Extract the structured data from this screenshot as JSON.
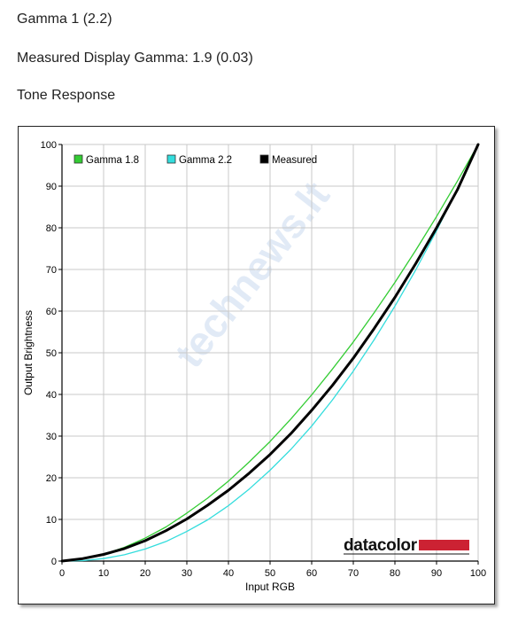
{
  "header": {
    "gamma_setting": "Gamma 1 (2.2)",
    "measured_gamma": "Measured Display Gamma: 1.9 (0.03)",
    "section_title": "Tone Response"
  },
  "watermark": "technews.lt",
  "logo_text": "datacolor",
  "chart_data": {
    "type": "line",
    "title": "",
    "xlabel": "Input RGB",
    "ylabel": "Output Brightness",
    "xlim": [
      0,
      100
    ],
    "ylim": [
      0,
      100
    ],
    "xticks": [
      0,
      10,
      20,
      30,
      40,
      50,
      60,
      70,
      80,
      90,
      100
    ],
    "yticks": [
      0,
      10,
      20,
      30,
      40,
      50,
      60,
      70,
      80,
      90,
      100
    ],
    "grid": true,
    "legend_position": "top-left",
    "x": [
      0,
      5,
      10,
      15,
      20,
      25,
      30,
      35,
      40,
      45,
      50,
      55,
      60,
      65,
      70,
      75,
      80,
      85,
      90,
      95,
      100
    ],
    "series": [
      {
        "name": "Gamma 1.8",
        "color": "#33cc33",
        "values": [
          0,
          0.5,
          1.6,
          3.3,
          5.5,
          8.2,
          11.5,
          15.1,
          19.2,
          23.8,
          28.7,
          34.1,
          39.9,
          46.1,
          52.6,
          59.6,
          66.9,
          74.6,
          82.7,
          91.2,
          100
        ]
      },
      {
        "name": "Gamma 2.2",
        "color": "#33dddd",
        "values": [
          0,
          0.1,
          0.6,
          1.5,
          2.9,
          4.7,
          7.1,
          9.9,
          13.3,
          17.3,
          21.8,
          26.8,
          32.4,
          38.7,
          45.6,
          53.1,
          61.2,
          69.9,
          79.3,
          89.3,
          100
        ]
      },
      {
        "name": "Measured",
        "color": "#000000",
        "values": [
          0,
          0.6,
          1.6,
          3.0,
          4.9,
          7.3,
          10.1,
          13.4,
          17.0,
          21.1,
          25.6,
          30.6,
          36.2,
          42.2,
          48.7,
          55.8,
          63.3,
          71.4,
          80.0,
          89.1,
          100
        ]
      }
    ]
  }
}
